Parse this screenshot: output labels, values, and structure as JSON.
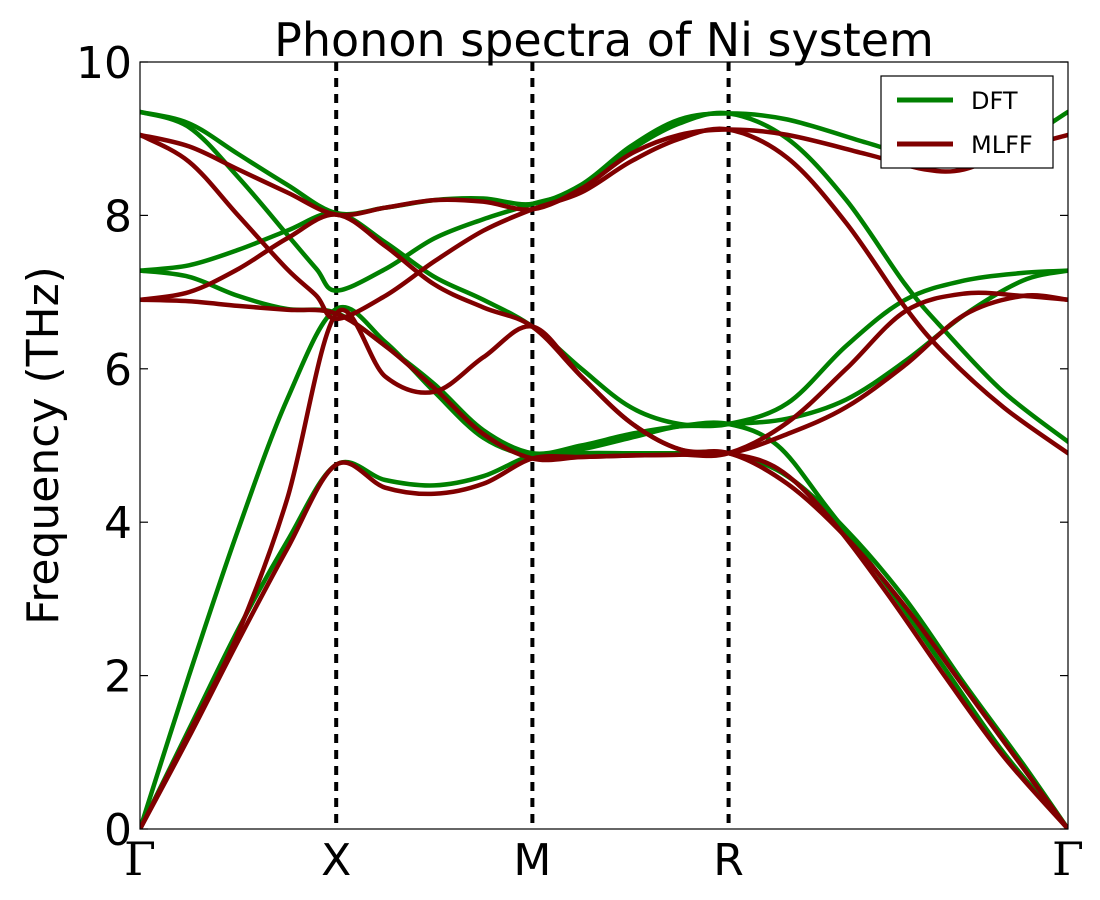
{
  "chart_data": {
    "type": "line",
    "title": "Phonon spectra of Ni system",
    "xlabel": "",
    "ylabel": "Frequency (THz)",
    "ylim": [
      0,
      10
    ],
    "yticks": [
      0,
      2,
      4,
      6,
      8,
      10
    ],
    "xlim": [
      0,
      4.73
    ],
    "high_symmetry_points": [
      {
        "label": "Γ",
        "x": 0
      },
      {
        "label": "X",
        "x": 1
      },
      {
        "label": "M",
        "x": 2
      },
      {
        "label": "R",
        "x": 3
      },
      {
        "label": "Γ",
        "x": 4.73
      }
    ],
    "legend_position": "top-right",
    "series": [
      {
        "name": "DFT",
        "color": "#008000",
        "branches": [
          [
            [
              0,
              9.35
            ],
            [
              0.25,
              9.2
            ],
            [
              0.5,
              8.8
            ],
            [
              0.75,
              8.4
            ],
            [
              1,
              8.03
            ],
            [
              1.25,
              8.1
            ],
            [
              1.5,
              8.2
            ],
            [
              1.75,
              8.22
            ],
            [
              2,
              8.15
            ],
            [
              2.25,
              8.4
            ],
            [
              2.5,
              8.9
            ],
            [
              2.75,
              9.25
            ],
            [
              3,
              9.33
            ],
            [
              3.3,
              9.25
            ],
            [
              3.7,
              8.95
            ],
            [
              4.0,
              8.72
            ],
            [
              4.2,
              8.65
            ],
            [
              4.45,
              8.9
            ],
            [
              4.73,
              9.35
            ]
          ],
          [
            [
              0,
              9.35
            ],
            [
              0.25,
              9.15
            ],
            [
              0.5,
              8.5
            ],
            [
              0.75,
              7.75
            ],
            [
              0.9,
              7.3
            ],
            [
              1,
              7.02
            ],
            [
              1.25,
              7.3
            ],
            [
              1.5,
              7.7
            ],
            [
              1.75,
              7.95
            ],
            [
              2,
              8.15
            ],
            [
              2.25,
              8.35
            ],
            [
              2.5,
              8.85
            ],
            [
              2.75,
              9.2
            ],
            [
              3,
              9.33
            ],
            [
              3.3,
              9.0
            ],
            [
              3.6,
              8.2
            ],
            [
              3.9,
              7.1
            ],
            [
              4.1,
              6.5
            ],
            [
              4.4,
              5.7
            ],
            [
              4.73,
              5.05
            ]
          ],
          [
            [
              0,
              7.28
            ],
            [
              0.25,
              7.35
            ],
            [
              0.5,
              7.55
            ],
            [
              0.75,
              7.8
            ],
            [
              1,
              8.03
            ],
            [
              1.25,
              7.65
            ],
            [
              1.5,
              7.2
            ],
            [
              1.75,
              6.9
            ],
            [
              2,
              6.55
            ],
            [
              2.25,
              6.0
            ],
            [
              2.5,
              5.5
            ],
            [
              2.75,
              5.28
            ],
            [
              3,
              5.28
            ],
            [
              3.3,
              5.35
            ],
            [
              3.6,
              5.6
            ],
            [
              3.9,
              6.1
            ],
            [
              4.2,
              6.7
            ],
            [
              4.5,
              7.15
            ],
            [
              4.73,
              7.28
            ]
          ],
          [
            [
              0,
              7.28
            ],
            [
              0.25,
              7.2
            ],
            [
              0.5,
              6.95
            ],
            [
              0.75,
              6.78
            ],
            [
              1,
              6.73
            ],
            [
              1.25,
              6.3
            ],
            [
              1.5,
              5.8
            ],
            [
              1.75,
              5.2
            ],
            [
              2,
              4.9
            ],
            [
              2.25,
              5.0
            ],
            [
              2.5,
              5.15
            ],
            [
              2.75,
              5.25
            ],
            [
              3,
              5.28
            ],
            [
              3.3,
              5.55
            ],
            [
              3.6,
              6.3
            ],
            [
              3.9,
              6.9
            ],
            [
              4.2,
              7.15
            ],
            [
              4.5,
              7.25
            ],
            [
              4.73,
              7.28
            ]
          ],
          [
            [
              0,
              0
            ],
            [
              0.25,
              2.0
            ],
            [
              0.5,
              3.9
            ],
            [
              0.75,
              5.6
            ],
            [
              1,
              6.78
            ],
            [
              1.25,
              6.35
            ],
            [
              1.5,
              5.7
            ],
            [
              1.75,
              5.1
            ],
            [
              2,
              4.87
            ],
            [
              2.25,
              4.95
            ],
            [
              2.5,
              5.1
            ],
            [
              2.75,
              5.25
            ],
            [
              3,
              5.28
            ],
            [
              3.25,
              5.0
            ],
            [
              3.5,
              4.2
            ],
            [
              3.8,
              3.2
            ],
            [
              4.1,
              2.1
            ],
            [
              4.4,
              1.0
            ],
            [
              4.73,
              0
            ]
          ],
          [
            [
              0,
              0
            ],
            [
              0.25,
              1.3
            ],
            [
              0.5,
              2.6
            ],
            [
              0.75,
              3.75
            ],
            [
              1,
              4.75
            ],
            [
              1.25,
              4.55
            ],
            [
              1.5,
              4.48
            ],
            [
              1.75,
              4.6
            ],
            [
              2,
              4.87
            ],
            [
              2.25,
              4.9
            ],
            [
              2.5,
              4.9
            ],
            [
              2.75,
              4.9
            ],
            [
              3,
              4.9
            ],
            [
              3.3,
              4.6
            ],
            [
              3.6,
              3.9
            ],
            [
              3.9,
              3.0
            ],
            [
              4.2,
              1.9
            ],
            [
              4.5,
              0.85
            ],
            [
              4.73,
              0
            ]
          ]
        ]
      },
      {
        "name": "MLFF",
        "color": "#800000",
        "branches": [
          [
            [
              0,
              9.05
            ],
            [
              0.25,
              8.9
            ],
            [
              0.5,
              8.6
            ],
            [
              0.75,
              8.3
            ],
            [
              1,
              8.01
            ],
            [
              1.25,
              8.1
            ],
            [
              1.5,
              8.2
            ],
            [
              1.75,
              8.18
            ],
            [
              2,
              8.08
            ],
            [
              2.25,
              8.35
            ],
            [
              2.5,
              8.8
            ],
            [
              2.75,
              9.05
            ],
            [
              3,
              9.12
            ],
            [
              3.3,
              9.05
            ],
            [
              3.7,
              8.8
            ],
            [
              4.0,
              8.6
            ],
            [
              4.2,
              8.6
            ],
            [
              4.45,
              8.85
            ],
            [
              4.73,
              9.05
            ]
          ],
          [
            [
              0,
              9.05
            ],
            [
              0.25,
              8.7
            ],
            [
              0.5,
              8.0
            ],
            [
              0.75,
              7.3
            ],
            [
              0.9,
              6.95
            ],
            [
              1,
              6.65
            ],
            [
              1.25,
              6.95
            ],
            [
              1.5,
              7.4
            ],
            [
              1.75,
              7.8
            ],
            [
              2,
              8.08
            ],
            [
              2.25,
              8.3
            ],
            [
              2.5,
              8.7
            ],
            [
              2.75,
              9.0
            ],
            [
              3,
              9.12
            ],
            [
              3.3,
              8.75
            ],
            [
              3.6,
              7.9
            ],
            [
              3.9,
              6.8
            ],
            [
              4.1,
              6.2
            ],
            [
              4.4,
              5.5
            ],
            [
              4.73,
              4.9
            ]
          ],
          [
            [
              0,
              6.9
            ],
            [
              0.25,
              7.0
            ],
            [
              0.5,
              7.3
            ],
            [
              0.75,
              7.7
            ],
            [
              1,
              8.01
            ],
            [
              1.25,
              7.6
            ],
            [
              1.5,
              7.1
            ],
            [
              1.75,
              6.8
            ],
            [
              2,
              6.55
            ],
            [
              2.25,
              5.9
            ],
            [
              2.5,
              5.3
            ],
            [
              2.75,
              4.95
            ],
            [
              3,
              4.9
            ],
            [
              3.3,
              5.15
            ],
            [
              3.6,
              5.5
            ],
            [
              3.9,
              6.05
            ],
            [
              4.2,
              6.7
            ],
            [
              4.5,
              6.95
            ],
            [
              4.73,
              6.9
            ]
          ],
          [
            [
              0,
              6.9
            ],
            [
              0.25,
              6.88
            ],
            [
              0.5,
              6.82
            ],
            [
              0.75,
              6.77
            ],
            [
              1,
              6.72
            ],
            [
              1.25,
              6.3
            ],
            [
              1.5,
              5.75
            ],
            [
              1.75,
              5.15
            ],
            [
              2,
              4.83
            ],
            [
              2.25,
              4.85
            ],
            [
              2.5,
              4.87
            ],
            [
              2.75,
              4.88
            ],
            [
              3,
              4.9
            ],
            [
              3.3,
              5.3
            ],
            [
              3.6,
              6.0
            ],
            [
              3.9,
              6.75
            ],
            [
              4.2,
              6.98
            ],
            [
              4.5,
              6.95
            ],
            [
              4.73,
              6.9
            ]
          ],
          [
            [
              0,
              0
            ],
            [
              0.25,
              1.25
            ],
            [
              0.5,
              2.55
            ],
            [
              0.75,
              4.3
            ],
            [
              1,
              6.72
            ],
            [
              1.25,
              5.9
            ],
            [
              1.5,
              5.7
            ],
            [
              1.75,
              6.15
            ],
            [
              2,
              6.55
            ],
            [
              2.25,
              5.9
            ],
            [
              2.5,
              5.3
            ],
            [
              2.75,
              4.95
            ],
            [
              3,
              4.9
            ],
            [
              3.25,
              4.7
            ],
            [
              3.5,
              4.1
            ],
            [
              3.8,
              3.1
            ],
            [
              4.1,
              2.0
            ],
            [
              4.4,
              0.95
            ],
            [
              4.73,
              0
            ]
          ],
          [
            [
              0,
              0
            ],
            [
              0.25,
              1.2
            ],
            [
              0.5,
              2.45
            ],
            [
              0.75,
              3.65
            ],
            [
              1,
              4.75
            ],
            [
              1.25,
              4.45
            ],
            [
              1.5,
              4.37
            ],
            [
              1.75,
              4.5
            ],
            [
              2,
              4.83
            ],
            [
              2.25,
              4.85
            ],
            [
              2.5,
              4.87
            ],
            [
              2.75,
              4.88
            ],
            [
              3,
              4.9
            ],
            [
              3.3,
              4.5
            ],
            [
              3.6,
              3.8
            ],
            [
              3.9,
              2.9
            ],
            [
              4.2,
              1.85
            ],
            [
              4.5,
              0.8
            ],
            [
              4.73,
              0
            ]
          ]
        ]
      }
    ]
  }
}
